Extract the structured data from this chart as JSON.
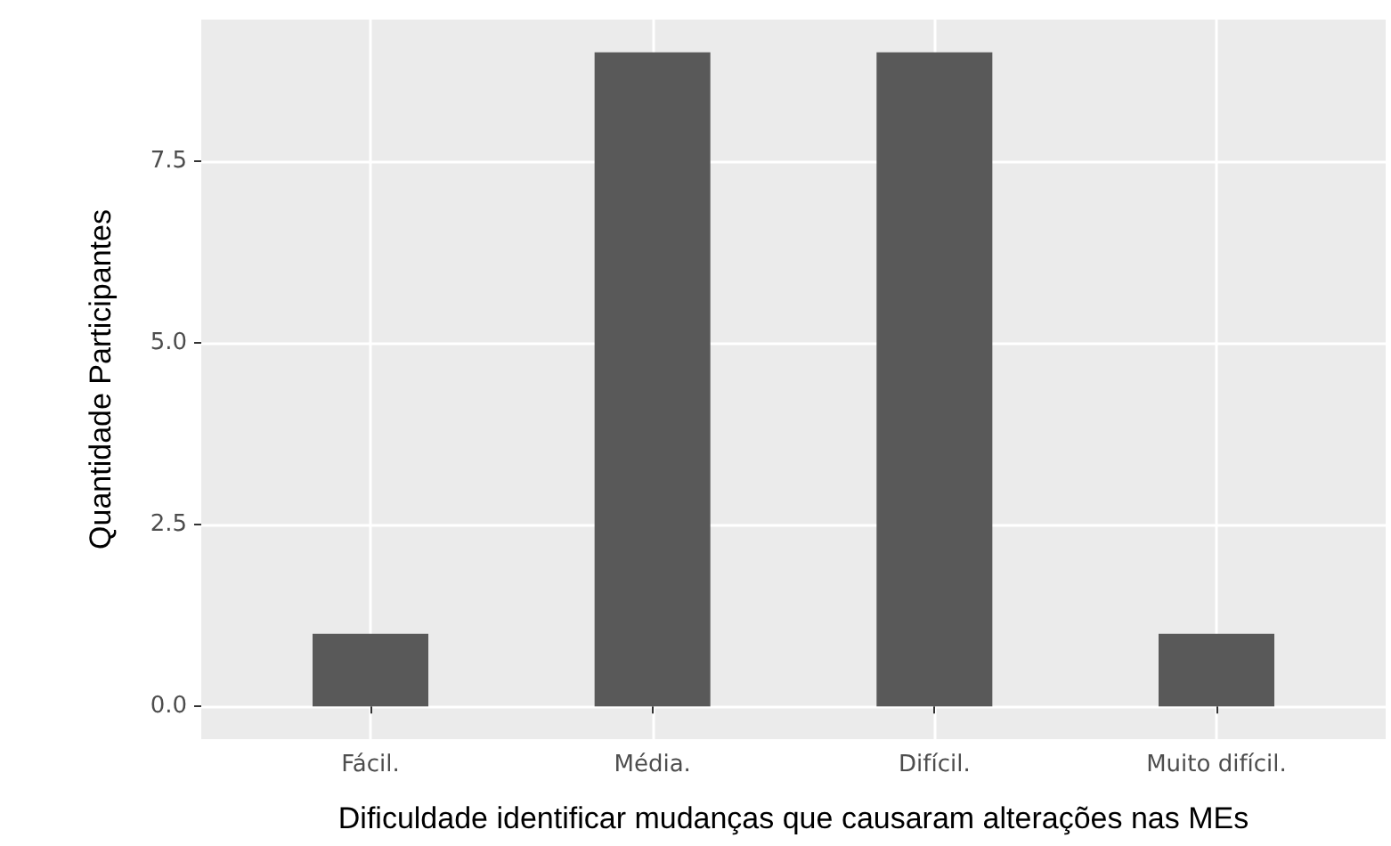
{
  "chart_data": {
    "type": "bar",
    "xlabel": "Dificuldade identificar mudanças que causaram alterações nas MEs",
    "ylabel": "Quantidade Participantes",
    "categories": [
      "Fácil.",
      "Média.",
      "Difícil.",
      "Muito difícil."
    ],
    "values": [
      1,
      9,
      9,
      1
    ],
    "color": "#595959",
    "ylim": [
      -0.45,
      9.45
    ],
    "yticks": [
      {
        "value": 0,
        "label": "0.0"
      },
      {
        "value": 2.5,
        "label": "2.5"
      },
      {
        "value": 5,
        "label": "5.0"
      },
      {
        "value": 7.5,
        "label": "7.5"
      }
    ],
    "grid": true
  }
}
